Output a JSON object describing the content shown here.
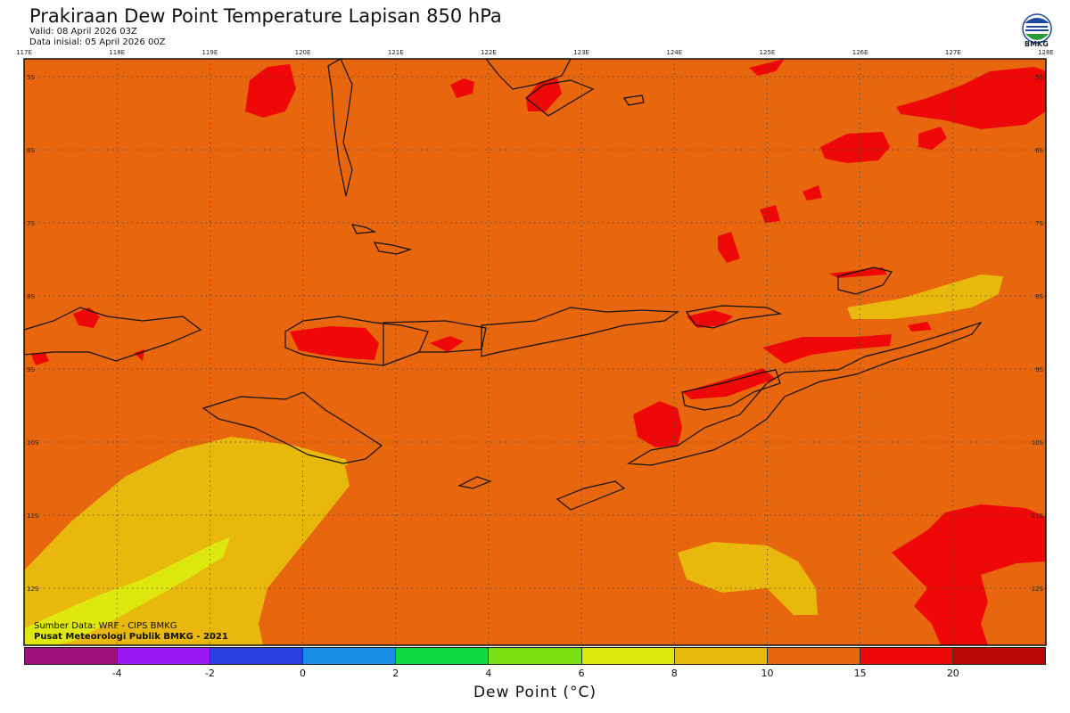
{
  "header": {
    "title": "Prakiraan Dew Point Temperature Lapisan 850 hPa",
    "valid": "Valid: 08 April 2026 03Z",
    "initial": "Data inisial: 05 April 2026 00Z",
    "logo_text": "BMKG"
  },
  "map": {
    "lon_labels": [
      "117E",
      "118E",
      "119E",
      "120E",
      "121E",
      "122E",
      "123E",
      "124E",
      "125E",
      "126E",
      "127E",
      "128E"
    ],
    "lat_labels": [
      "5S",
      "6S",
      "7S",
      "8S",
      "9S",
      "10S",
      "11S",
      "12S"
    ],
    "background_color": "#e8660d"
  },
  "credits": {
    "source": "Sumber Data: WRF - CIPS BMKG",
    "publisher": "Pusat Meteorologi Publik BMKG - 2021"
  },
  "colorbar": {
    "title": "Dew Point (°C)",
    "colors": [
      "#a0107a",
      "#9b18f0",
      "#2a3fe0",
      "#1a8ee6",
      "#10d840",
      "#7be012",
      "#dfe80e",
      "#e8b80c",
      "#e8660d",
      "#ee0808",
      "#bc0707"
    ],
    "labels": [
      "-4",
      "-2",
      "0",
      "2",
      "4",
      "6",
      "8",
      "10",
      "15",
      "20"
    ]
  }
}
